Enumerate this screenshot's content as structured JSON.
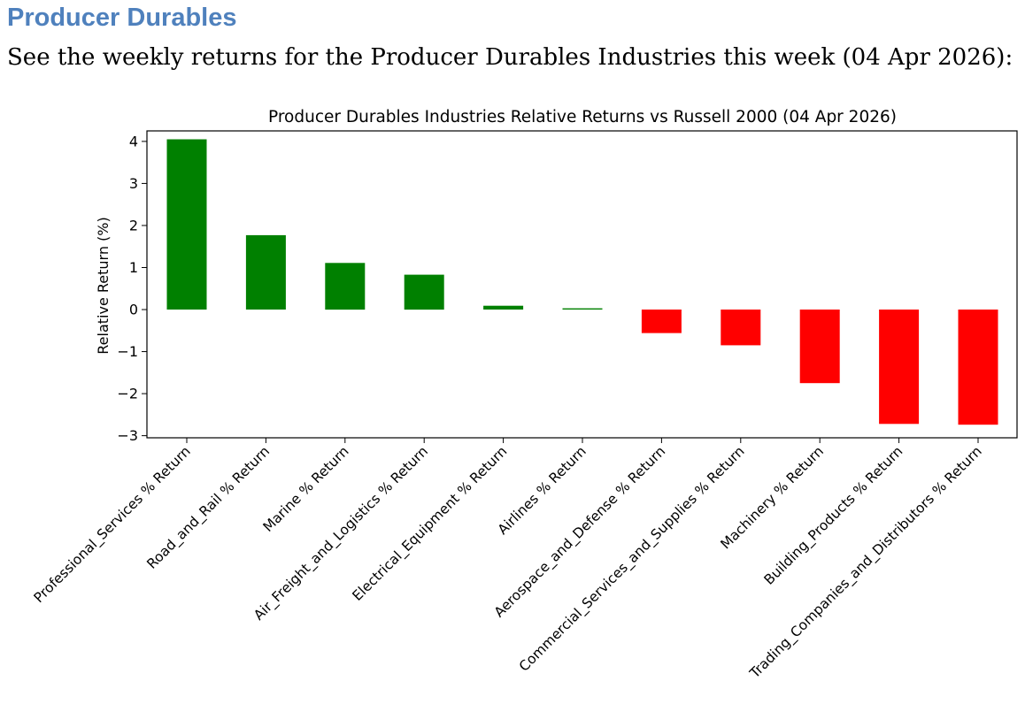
{
  "heading": "Producer Durables",
  "intro_text": "See the weekly returns for the Producer Durables Industries this week (04 Apr 2026):",
  "colors": {
    "positive": "#008000",
    "negative": "#ff0000",
    "heading": "#4f81bd"
  },
  "chart_data": {
    "type": "bar",
    "title": "Producer Durables Industries Relative Returns vs Russell 2000 (04 Apr 2026)",
    "xlabel": "",
    "ylabel": "Relative Return (%)",
    "ylim": [
      -3.05,
      4.25
    ],
    "yticks": [
      4,
      3,
      2,
      1,
      0,
      -1,
      -2,
      -3
    ],
    "ytick_labels": [
      "4",
      "3",
      "2",
      "1",
      "0",
      "−1",
      "−2",
      "−3"
    ],
    "grid": false,
    "categories": [
      "Professional_Services % Return",
      "Road_and_Rail % Return",
      "Marine % Return",
      "Air_Freight_and_Logistics % Return",
      "Electrical_Equipment % Return",
      "Airlines % Return",
      "Aerospace_and_Defense % Return",
      "Commercial_Services_and_Supplies % Return",
      "Machinery % Return",
      "Building_Products % Return",
      "Trading_Companies_and_Distributors % Return"
    ],
    "values": [
      4.05,
      1.77,
      1.11,
      0.83,
      0.09,
      0.03,
      -0.56,
      -0.85,
      -1.75,
      -2.72,
      -2.74
    ]
  }
}
